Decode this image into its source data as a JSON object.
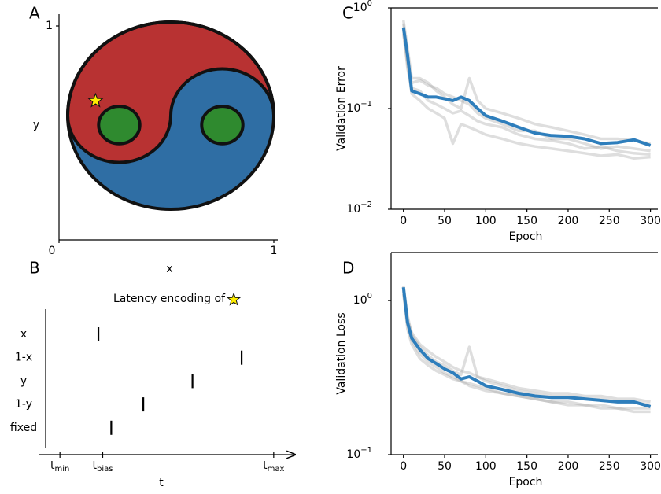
{
  "chart_data": [
    {
      "type": "yinyang",
      "label": "A",
      "xlabel": "x",
      "ylabel": "y",
      "xlim": [
        0,
        1
      ],
      "ylim": [
        0,
        1
      ],
      "xticks": [
        0,
        1
      ],
      "yticks": [
        1
      ],
      "star": {
        "x": 0.17,
        "y": 0.65
      },
      "colors": {
        "top": "#b83232",
        "bottom": "#2f6ea4",
        "inner": "#2f8a2f",
        "star": "#ffee00"
      }
    },
    {
      "type": "raster",
      "label": "B",
      "title": "Latency encoding of",
      "xlabel": "t",
      "categories": [
        "x",
        "1-x",
        "y",
        "1-y",
        "fixed"
      ],
      "values": [
        0.18,
        0.85,
        0.62,
        0.39,
        0.24
      ],
      "xlim": [
        -0.1,
        1.1
      ],
      "xticks": [
        {
          "value": 0,
          "label": "t",
          "subscript": "min"
        },
        {
          "value": 0.2,
          "label": "t",
          "subscript": "bias"
        },
        {
          "value": 1,
          "label": "t",
          "subscript": "max"
        }
      ],
      "color": "#000000"
    },
    {
      "type": "line",
      "label": "C",
      "xlabel": "Epoch",
      "ylabel": "Validation Error",
      "log_y": true,
      "xlim": [
        -15,
        309
      ],
      "ylim": [
        0.01,
        1
      ],
      "xticks": [
        0,
        50,
        100,
        150,
        200,
        250,
        300
      ],
      "yticks": [
        {
          "value": 0.01,
          "label": "10",
          "exponent": "−2"
        },
        {
          "value": 0.1,
          "label": "10",
          "exponent": "−1"
        },
        {
          "value": 1,
          "label": "10",
          "exponent": "0"
        }
      ],
      "x": [
        0,
        5,
        10,
        20,
        30,
        40,
        50,
        60,
        70,
        80,
        90,
        100,
        120,
        140,
        160,
        180,
        200,
        220,
        240,
        260,
        280,
        300
      ],
      "series": [
        {
          "color": "#a0a0a0",
          "values": [
            0.7,
            0.3,
            0.18,
            0.19,
            0.17,
            0.16,
            0.14,
            0.13,
            0.12,
            0.11,
            0.09,
            0.08,
            0.07,
            0.06,
            0.06,
            0.05,
            0.05,
            0.045,
            0.04,
            0.042,
            0.04,
            0.038
          ]
        },
        {
          "color": "#a0a0a0",
          "values": [
            0.6,
            0.25,
            0.16,
            0.15,
            0.12,
            0.11,
            0.1,
            0.09,
            0.095,
            0.085,
            0.075,
            0.07,
            0.065,
            0.055,
            0.05,
            0.048,
            0.045,
            0.04,
            0.042,
            0.038,
            0.036,
            0.035
          ]
        },
        {
          "color": "#a0a0a0",
          "values": [
            0.75,
            0.4,
            0.2,
            0.2,
            0.18,
            0.15,
            0.13,
            0.11,
            0.1,
            0.2,
            0.12,
            0.1,
            0.09,
            0.08,
            0.07,
            0.065,
            0.06,
            0.055,
            0.05,
            0.05,
            0.048,
            0.045
          ]
        },
        {
          "color": "#a0a0a0",
          "values": [
            0.55,
            0.28,
            0.14,
            0.12,
            0.1,
            0.09,
            0.08,
            0.045,
            0.07,
            0.065,
            0.06,
            0.055,
            0.05,
            0.045,
            0.042,
            0.04,
            0.038,
            0.036,
            0.034,
            0.035,
            0.032,
            0.033
          ]
        },
        {
          "color": "#2e7ebc",
          "values": [
            0.64,
            0.34,
            0.15,
            0.14,
            0.13,
            0.13,
            0.125,
            0.12,
            0.13,
            0.12,
            0.1,
            0.085,
            0.075,
            0.065,
            0.057,
            0.054,
            0.053,
            0.05,
            0.045,
            0.046,
            0.049,
            0.043
          ]
        }
      ]
    },
    {
      "type": "line",
      "label": "D",
      "xlabel": "Epoch",
      "ylabel": "Validation Loss",
      "log_y": true,
      "xlim": [
        -15,
        309
      ],
      "ylim": [
        0.1,
        2.05
      ],
      "xticks": [
        0,
        50,
        100,
        150,
        200,
        250,
        300
      ],
      "yticks": [
        {
          "value": 0.1,
          "label": "10",
          "exponent": "−1"
        },
        {
          "value": 1,
          "label": "10",
          "exponent": "0"
        }
      ],
      "x": [
        0,
        5,
        10,
        20,
        30,
        40,
        50,
        60,
        70,
        80,
        90,
        100,
        120,
        140,
        160,
        180,
        200,
        220,
        240,
        260,
        280,
        300
      ],
      "series": [
        {
          "color": "#a0a0a0",
          "values": [
            1.25,
            0.8,
            0.6,
            0.5,
            0.44,
            0.4,
            0.38,
            0.35,
            0.33,
            0.5,
            0.32,
            0.3,
            0.28,
            0.26,
            0.25,
            0.24,
            0.24,
            0.23,
            0.23,
            0.22,
            0.22,
            0.21
          ]
        },
        {
          "color": "#a0a0a0",
          "values": [
            1.15,
            0.65,
            0.52,
            0.42,
            0.38,
            0.35,
            0.33,
            0.31,
            0.3,
            0.28,
            0.27,
            0.26,
            0.25,
            0.24,
            0.23,
            0.22,
            0.21,
            0.21,
            0.2,
            0.2,
            0.19,
            0.19
          ]
        },
        {
          "color": "#a0a0a0",
          "values": [
            1.2,
            0.75,
            0.62,
            0.52,
            0.47,
            0.43,
            0.4,
            0.37,
            0.35,
            0.34,
            0.32,
            0.31,
            0.29,
            0.27,
            0.26,
            0.25,
            0.25,
            0.24,
            0.24,
            0.23,
            0.23,
            0.22
          ]
        },
        {
          "color": "#a0a0a0",
          "values": [
            1.1,
            0.7,
            0.55,
            0.45,
            0.4,
            0.37,
            0.34,
            0.32,
            0.3,
            0.29,
            0.28,
            0.27,
            0.25,
            0.24,
            0.23,
            0.22,
            0.22,
            0.21,
            0.21,
            0.2,
            0.2,
            0.2
          ]
        },
        {
          "color": "#2e7ebc",
          "values": [
            1.22,
            0.72,
            0.57,
            0.48,
            0.42,
            0.39,
            0.36,
            0.34,
            0.31,
            0.32,
            0.3,
            0.28,
            0.265,
            0.25,
            0.24,
            0.235,
            0.235,
            0.23,
            0.225,
            0.22,
            0.22,
            0.205
          ]
        }
      ]
    }
  ]
}
